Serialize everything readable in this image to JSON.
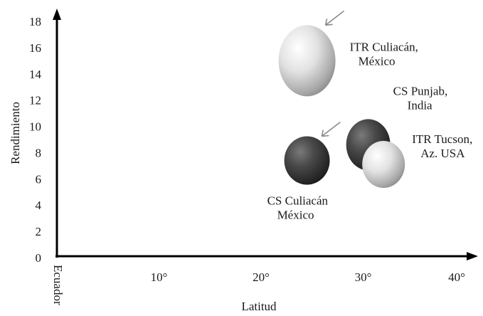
{
  "chart_data": {
    "type": "scatter",
    "title": "",
    "xlabel": "Latitud",
    "ylabel": "Rendimiento",
    "xlim": [
      0,
      40
    ],
    "ylim": [
      0,
      18
    ],
    "x_ticks": [
      {
        "value": 0,
        "label": "Ecuador"
      },
      {
        "value": 10,
        "label": "10°"
      },
      {
        "value": 20,
        "label": "20°"
      },
      {
        "value": 30,
        "label": "30°"
      },
      {
        "value": 40,
        "label": "40°"
      }
    ],
    "y_ticks": [
      0,
      2,
      4,
      6,
      8,
      10,
      12,
      14,
      16,
      18
    ],
    "grid": false,
    "points": [
      {
        "label_lines": [
          "ITR Culiacán,",
          "México"
        ],
        "x": 24.5,
        "y": 15.0,
        "shade": "light",
        "arrow": true
      },
      {
        "label_lines": [
          "CS Punjab,",
          "India"
        ],
        "x": 30.5,
        "y": 8.6,
        "shade": "dark",
        "arrow": false
      },
      {
        "label_lines": [
          "ITR Tucson,",
          "Az. USA"
        ],
        "x": 32.0,
        "y": 7.1,
        "shade": "light",
        "arrow": false
      },
      {
        "label_lines": [
          "CS Culiacán",
          "México"
        ],
        "x": 24.5,
        "y": 7.4,
        "shade": "dark",
        "arrow": true
      }
    ],
    "colors": {
      "light": "#d8d8d8",
      "dark": "#3a3a3a",
      "axis": "#000000",
      "arrow": "#8a8a8a"
    }
  }
}
